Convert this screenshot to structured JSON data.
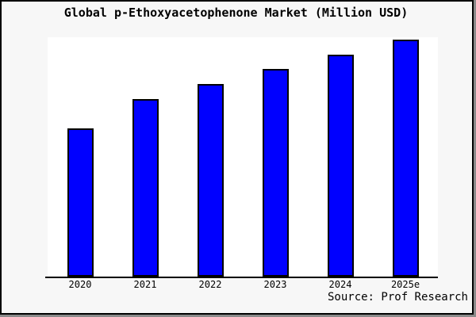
{
  "title": "Global p-Ethoxyacetophenone Market (Million USD)",
  "source": "Source: Prof Research",
  "colors": {
    "bar_fill": "#0000ff",
    "bar_border": "#000000",
    "background": "#f7f7f7",
    "plot_background": "#ffffff",
    "frame_border": "#000000",
    "shadow": "#8a8a8a"
  },
  "chart_data": {
    "type": "bar",
    "title": "Global p-Ethoxyacetophenone Market (Million USD)",
    "categories": [
      "2020",
      "2021",
      "2022",
      "2023",
      "2024",
      "2025e"
    ],
    "values": [
      62.5,
      75.0,
      81.4,
      87.5,
      93.5,
      100.0
    ],
    "units": "Million USD (relative scale, 2025e = 100; no y-axis tick labels shown)",
    "xlabel": "",
    "ylabel": "",
    "ylim": [
      0,
      101
    ],
    "grid": false,
    "legend": false
  }
}
